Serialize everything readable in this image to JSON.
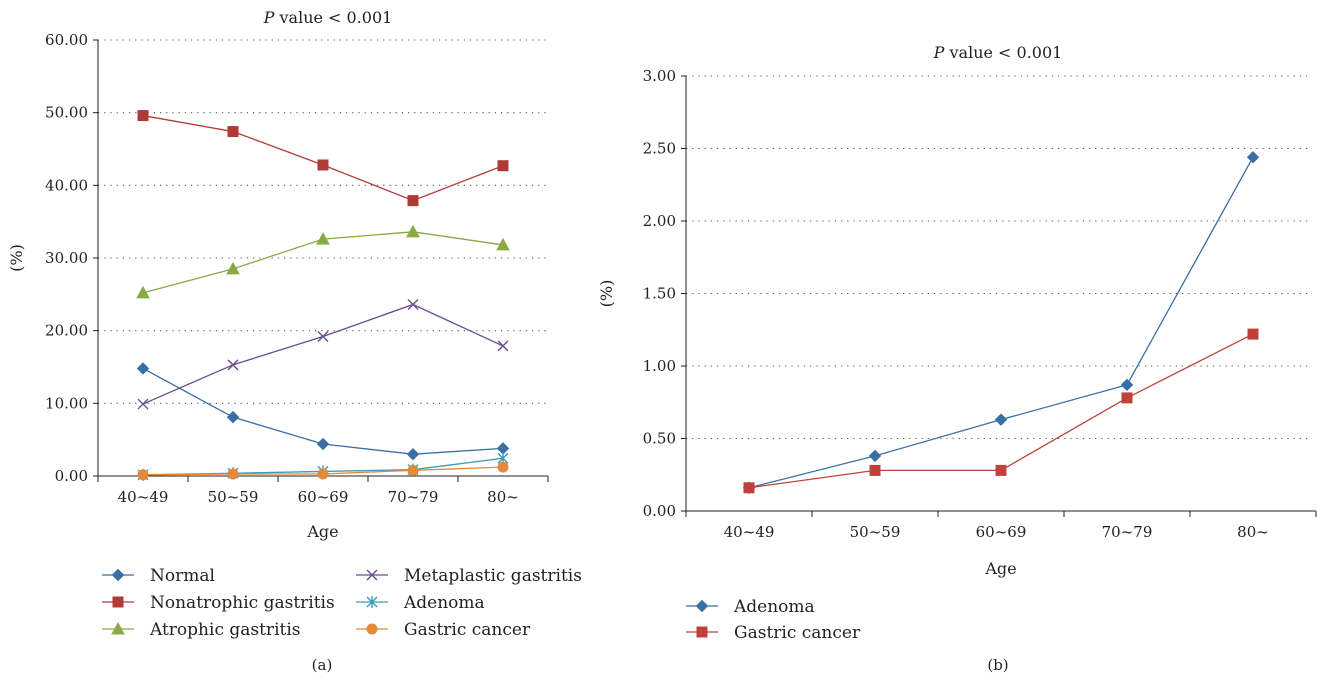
{
  "panels": [
    {
      "caption": "(a)",
      "title_italic": "P",
      "title_rest": " value < 0.001",
      "xlabel": "Age",
      "ylabel": "(%)",
      "chart_data": {
        "type": "line",
        "categories": [
          "40~49",
          "50~59",
          "60~69",
          "70~79",
          "80~"
        ],
        "ylim": [
          0,
          60
        ],
        "yticks": [
          "0.00",
          "10.00",
          "20.00",
          "30.00",
          "40.00",
          "50.00",
          "60.00"
        ],
        "grid": "horizontal dotted",
        "legend_position": "bottom",
        "series": [
          {
            "name": "Normal",
            "color": "#3a6ea5",
            "marker": "diamond",
            "values": [
              14.8,
              8.1,
              4.4,
              3.0,
              3.8
            ]
          },
          {
            "name": "Nonatrophic gastritis",
            "color": "#b03a36",
            "marker": "square",
            "values": [
              49.6,
              47.4,
              42.8,
              37.9,
              42.7
            ]
          },
          {
            "name": "Atrophic gastritis",
            "color": "#8aaa46",
            "marker": "triangle",
            "values": [
              25.2,
              28.5,
              32.6,
              33.6,
              31.8
            ]
          },
          {
            "name": "Metaplastic gastritis",
            "color": "#6a4c8c",
            "marker": "x",
            "values": [
              9.9,
              15.3,
              19.2,
              23.6,
              17.9
            ]
          },
          {
            "name": "Adenoma",
            "color": "#3a9bb5",
            "marker": "asterisk",
            "values": [
              0.16,
              0.38,
              0.63,
              0.87,
              2.44
            ]
          },
          {
            "name": "Gastric cancer",
            "color": "#e08a3a",
            "marker": "circle",
            "values": [
              0.16,
              0.28,
              0.28,
              0.78,
              1.22
            ]
          }
        ]
      }
    },
    {
      "caption": "(b)",
      "title_italic": "P",
      "title_rest": " value < 0.001",
      "xlabel": "Age",
      "ylabel": "(%)",
      "chart_data": {
        "type": "line",
        "categories": [
          "40~49",
          "50~59",
          "60~69",
          "70~79",
          "80~"
        ],
        "ylim": [
          0,
          3
        ],
        "yticks": [
          "0.00",
          "0.50",
          "1.00",
          "1.50",
          "2.00",
          "2.50",
          "3.00"
        ],
        "grid": "horizontal dotted",
        "legend_position": "bottom",
        "series": [
          {
            "name": "Adenoma",
            "color": "#3a6ea5",
            "marker": "diamond",
            "values": [
              0.16,
              0.38,
              0.63,
              0.87,
              2.44
            ]
          },
          {
            "name": "Gastric cancer",
            "color": "#c0413c",
            "marker": "square",
            "values": [
              0.16,
              0.28,
              0.28,
              0.78,
              1.22
            ]
          }
        ]
      }
    }
  ]
}
